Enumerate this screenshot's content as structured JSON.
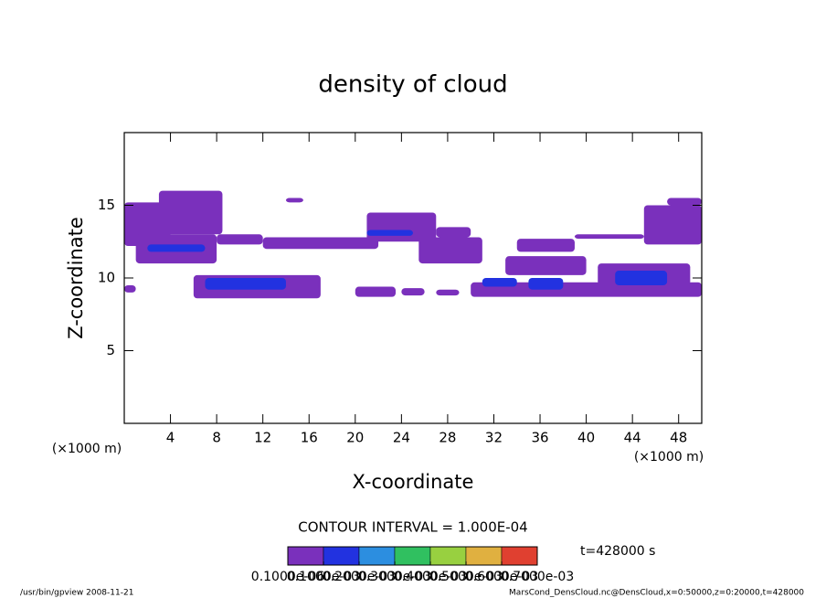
{
  "chart_data": {
    "type": "contour",
    "title": "density of cloud",
    "x_label": "X-coordinate",
    "y_label": "Z-coordinate",
    "x_unit": "(×1000 m)",
    "y_unit": "(×1000 m)",
    "xlim": [
      0,
      50
    ],
    "xticks": [
      4,
      8,
      12,
      16,
      20,
      24,
      28,
      32,
      36,
      40,
      44,
      48
    ],
    "ylim": [
      0,
      20
    ],
    "yticks": [
      5,
      10,
      15
    ],
    "contour_interval": "CONTOUR INTERVAL = 1.000E-04",
    "time_label": "t=428000 s",
    "footer_left": "/usr/bin/gpview  2008-11-21",
    "footer_right": "MarsCond_DensCloud.nc@DensCloud,x=0:50000,z=0:20000,t=428000",
    "colorbar": {
      "lim": [
        0,
        0.0007
      ],
      "levels": [
        0,
        0.0001,
        0.0002,
        0.0003,
        0.0004,
        0.0005,
        0.0006,
        0.0007
      ],
      "colors": [
        "#7a30bc",
        "#2232e0",
        "#2c8ee0",
        "#30c060",
        "#98d040",
        "#e0b040",
        "#e04030"
      ],
      "ticks": [
        {
          "value": 1e-07,
          "label": "0.1000e-06"
        },
        {
          "value": 0.0001,
          "label": "0.1000e-03"
        },
        {
          "value": 0.0002,
          "label": "0.2000e-03"
        },
        {
          "value": 0.0003,
          "label": "0.3000e-03"
        },
        {
          "value": 0.0004,
          "label": "0.4000e-03"
        },
        {
          "value": 0.0005,
          "label": "0.5000e-03"
        },
        {
          "value": 0.0006,
          "label": "0.6000e-03"
        },
        {
          "value": 0.0007,
          "label": "0.7000e-03"
        }
      ]
    },
    "cells": [
      {
        "x": [
          0,
          4
        ],
        "z": [
          12.2,
          15.2
        ],
        "value": 5e-05
      },
      {
        "x": [
          3,
          8.5
        ],
        "z": [
          13,
          16
        ],
        "value": 5e-05
      },
      {
        "x": [
          1,
          8
        ],
        "z": [
          11,
          13
        ],
        "value": 5e-05
      },
      {
        "x": [
          2,
          7
        ],
        "z": [
          11.8,
          12.3
        ],
        "value": 0.00012
      },
      {
        "x": [
          8,
          12
        ],
        "z": [
          12.3,
          13
        ],
        "value": 5e-05
      },
      {
        "x": [
          12,
          22
        ],
        "z": [
          12,
          12.8
        ],
        "value": 5e-05
      },
      {
        "x": [
          21,
          27
        ],
        "z": [
          12.5,
          14.5
        ],
        "value": 5e-05
      },
      {
        "x": [
          21,
          25
        ],
        "z": [
          12.9,
          13.3
        ],
        "value": 0.00012
      },
      {
        "x": [
          14,
          15.5
        ],
        "z": [
          15.2,
          15.5
        ],
        "value": 5e-05
      },
      {
        "x": [
          25.5,
          31
        ],
        "z": [
          11,
          12.8
        ],
        "value": 5e-05
      },
      {
        "x": [
          27,
          30
        ],
        "z": [
          12.8,
          13.5
        ],
        "value": 5e-05
      },
      {
        "x": [
          34,
          39
        ],
        "z": [
          11.8,
          12.7
        ],
        "value": 5e-05
      },
      {
        "x": [
          39,
          45
        ],
        "z": [
          12.7,
          13
        ],
        "value": 5e-05
      },
      {
        "x": [
          45,
          50
        ],
        "z": [
          12.3,
          15
        ],
        "value": 5e-05
      },
      {
        "x": [
          47,
          50
        ],
        "z": [
          15,
          15.5
        ],
        "value": 5e-05
      },
      {
        "x": [
          0,
          1
        ],
        "z": [
          9,
          9.5
        ],
        "value": 5e-05
      },
      {
        "x": [
          6,
          17
        ],
        "z": [
          8.6,
          10.2
        ],
        "value": 5e-05
      },
      {
        "x": [
          7,
          14
        ],
        "z": [
          9.2,
          10
        ],
        "value": 0.00015
      },
      {
        "x": [
          20,
          23.5
        ],
        "z": [
          8.7,
          9.4
        ],
        "value": 5e-05
      },
      {
        "x": [
          24,
          26
        ],
        "z": [
          8.8,
          9.3
        ],
        "value": 5e-05
      },
      {
        "x": [
          27,
          29
        ],
        "z": [
          8.8,
          9.2
        ],
        "value": 5e-05
      },
      {
        "x": [
          30,
          50
        ],
        "z": [
          8.7,
          9.7
        ],
        "value": 5e-05
      },
      {
        "x": [
          33,
          40
        ],
        "z": [
          10.2,
          11.5
        ],
        "value": 5e-05
      },
      {
        "x": [
          41,
          49
        ],
        "z": [
          9.5,
          11
        ],
        "value": 5e-05
      },
      {
        "x": [
          31,
          34
        ],
        "z": [
          9.4,
          10
        ],
        "value": 0.00015
      },
      {
        "x": [
          35,
          38
        ],
        "z": [
          9.2,
          10
        ],
        "value": 0.00015
      },
      {
        "x": [
          42.5,
          47
        ],
        "z": [
          9.5,
          10.5
        ],
        "value": 0.00015
      }
    ]
  }
}
